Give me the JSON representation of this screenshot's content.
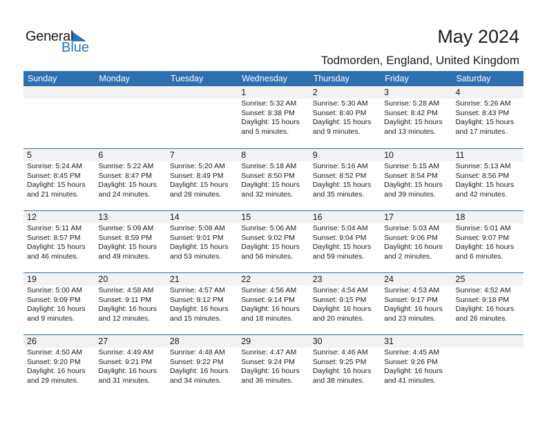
{
  "logo": {
    "text_general": "General",
    "text_blue": "Blue"
  },
  "header": {
    "title": "May 2024",
    "location": "Todmorden, England, United Kingdom"
  },
  "colors": {
    "accent": "#2e6fb0",
    "band": "#f2f2f2"
  },
  "days": [
    "Sunday",
    "Monday",
    "Tuesday",
    "Wednesday",
    "Thursday",
    "Friday",
    "Saturday"
  ],
  "weeks": [
    [
      null,
      null,
      null,
      {
        "day": "1",
        "sunrise": "Sunrise: 5:32 AM",
        "sunset": "Sunset: 8:38 PM",
        "daylight": "Daylight: 15 hours",
        "minutes": "and 5 minutes."
      },
      {
        "day": "2",
        "sunrise": "Sunrise: 5:30 AM",
        "sunset": "Sunset: 8:40 PM",
        "daylight": "Daylight: 15 hours",
        "minutes": "and 9 minutes."
      },
      {
        "day": "3",
        "sunrise": "Sunrise: 5:28 AM",
        "sunset": "Sunset: 8:42 PM",
        "daylight": "Daylight: 15 hours",
        "minutes": "and 13 minutes."
      },
      {
        "day": "4",
        "sunrise": "Sunrise: 5:26 AM",
        "sunset": "Sunset: 8:43 PM",
        "daylight": "Daylight: 15 hours",
        "minutes": "and 17 minutes."
      }
    ],
    [
      {
        "day": "5",
        "sunrise": "Sunrise: 5:24 AM",
        "sunset": "Sunset: 8:45 PM",
        "daylight": "Daylight: 15 hours",
        "minutes": "and 21 minutes."
      },
      {
        "day": "6",
        "sunrise": "Sunrise: 5:22 AM",
        "sunset": "Sunset: 8:47 PM",
        "daylight": "Daylight: 15 hours",
        "minutes": "and 24 minutes."
      },
      {
        "day": "7",
        "sunrise": "Sunrise: 5:20 AM",
        "sunset": "Sunset: 8:49 PM",
        "daylight": "Daylight: 15 hours",
        "minutes": "and 28 minutes."
      },
      {
        "day": "8",
        "sunrise": "Sunrise: 5:18 AM",
        "sunset": "Sunset: 8:50 PM",
        "daylight": "Daylight: 15 hours",
        "minutes": "and 32 minutes."
      },
      {
        "day": "9",
        "sunrise": "Sunrise: 5:16 AM",
        "sunset": "Sunset: 8:52 PM",
        "daylight": "Daylight: 15 hours",
        "minutes": "and 35 minutes."
      },
      {
        "day": "10",
        "sunrise": "Sunrise: 5:15 AM",
        "sunset": "Sunset: 8:54 PM",
        "daylight": "Daylight: 15 hours",
        "minutes": "and 39 minutes."
      },
      {
        "day": "11",
        "sunrise": "Sunrise: 5:13 AM",
        "sunset": "Sunset: 8:56 PM",
        "daylight": "Daylight: 15 hours",
        "minutes": "and 42 minutes."
      }
    ],
    [
      {
        "day": "12",
        "sunrise": "Sunrise: 5:11 AM",
        "sunset": "Sunset: 8:57 PM",
        "daylight": "Daylight: 15 hours",
        "minutes": "and 46 minutes."
      },
      {
        "day": "13",
        "sunrise": "Sunrise: 5:09 AM",
        "sunset": "Sunset: 8:59 PM",
        "daylight": "Daylight: 15 hours",
        "minutes": "and 49 minutes."
      },
      {
        "day": "14",
        "sunrise": "Sunrise: 5:08 AM",
        "sunset": "Sunset: 9:01 PM",
        "daylight": "Daylight: 15 hours",
        "minutes": "and 53 minutes."
      },
      {
        "day": "15",
        "sunrise": "Sunrise: 5:06 AM",
        "sunset": "Sunset: 9:02 PM",
        "daylight": "Daylight: 15 hours",
        "minutes": "and 56 minutes."
      },
      {
        "day": "16",
        "sunrise": "Sunrise: 5:04 AM",
        "sunset": "Sunset: 9:04 PM",
        "daylight": "Daylight: 15 hours",
        "minutes": "and 59 minutes."
      },
      {
        "day": "17",
        "sunrise": "Sunrise: 5:03 AM",
        "sunset": "Sunset: 9:06 PM",
        "daylight": "Daylight: 16 hours",
        "minutes": "and 2 minutes."
      },
      {
        "day": "18",
        "sunrise": "Sunrise: 5:01 AM",
        "sunset": "Sunset: 9:07 PM",
        "daylight": "Daylight: 16 hours",
        "minutes": "and 6 minutes."
      }
    ],
    [
      {
        "day": "19",
        "sunrise": "Sunrise: 5:00 AM",
        "sunset": "Sunset: 9:09 PM",
        "daylight": "Daylight: 16 hours",
        "minutes": "and 9 minutes."
      },
      {
        "day": "20",
        "sunrise": "Sunrise: 4:58 AM",
        "sunset": "Sunset: 9:11 PM",
        "daylight": "Daylight: 16 hours",
        "minutes": "and 12 minutes."
      },
      {
        "day": "21",
        "sunrise": "Sunrise: 4:57 AM",
        "sunset": "Sunset: 9:12 PM",
        "daylight": "Daylight: 16 hours",
        "minutes": "and 15 minutes."
      },
      {
        "day": "22",
        "sunrise": "Sunrise: 4:56 AM",
        "sunset": "Sunset: 9:14 PM",
        "daylight": "Daylight: 16 hours",
        "minutes": "and 18 minutes."
      },
      {
        "day": "23",
        "sunrise": "Sunrise: 4:54 AM",
        "sunset": "Sunset: 9:15 PM",
        "daylight": "Daylight: 16 hours",
        "minutes": "and 20 minutes."
      },
      {
        "day": "24",
        "sunrise": "Sunrise: 4:53 AM",
        "sunset": "Sunset: 9:17 PM",
        "daylight": "Daylight: 16 hours",
        "minutes": "and 23 minutes."
      },
      {
        "day": "25",
        "sunrise": "Sunrise: 4:52 AM",
        "sunset": "Sunset: 9:18 PM",
        "daylight": "Daylight: 16 hours",
        "minutes": "and 26 minutes."
      }
    ],
    [
      {
        "day": "26",
        "sunrise": "Sunrise: 4:50 AM",
        "sunset": "Sunset: 9:20 PM",
        "daylight": "Daylight: 16 hours",
        "minutes": "and 29 minutes."
      },
      {
        "day": "27",
        "sunrise": "Sunrise: 4:49 AM",
        "sunset": "Sunset: 9:21 PM",
        "daylight": "Daylight: 16 hours",
        "minutes": "and 31 minutes."
      },
      {
        "day": "28",
        "sunrise": "Sunrise: 4:48 AM",
        "sunset": "Sunset: 9:22 PM",
        "daylight": "Daylight: 16 hours",
        "minutes": "and 34 minutes."
      },
      {
        "day": "29",
        "sunrise": "Sunrise: 4:47 AM",
        "sunset": "Sunset: 9:24 PM",
        "daylight": "Daylight: 16 hours",
        "minutes": "and 36 minutes."
      },
      {
        "day": "30",
        "sunrise": "Sunrise: 4:46 AM",
        "sunset": "Sunset: 9:25 PM",
        "daylight": "Daylight: 16 hours",
        "minutes": "and 38 minutes."
      },
      {
        "day": "31",
        "sunrise": "Sunrise: 4:45 AM",
        "sunset": "Sunset: 9:26 PM",
        "daylight": "Daylight: 16 hours",
        "minutes": "and 41 minutes."
      },
      null
    ]
  ]
}
